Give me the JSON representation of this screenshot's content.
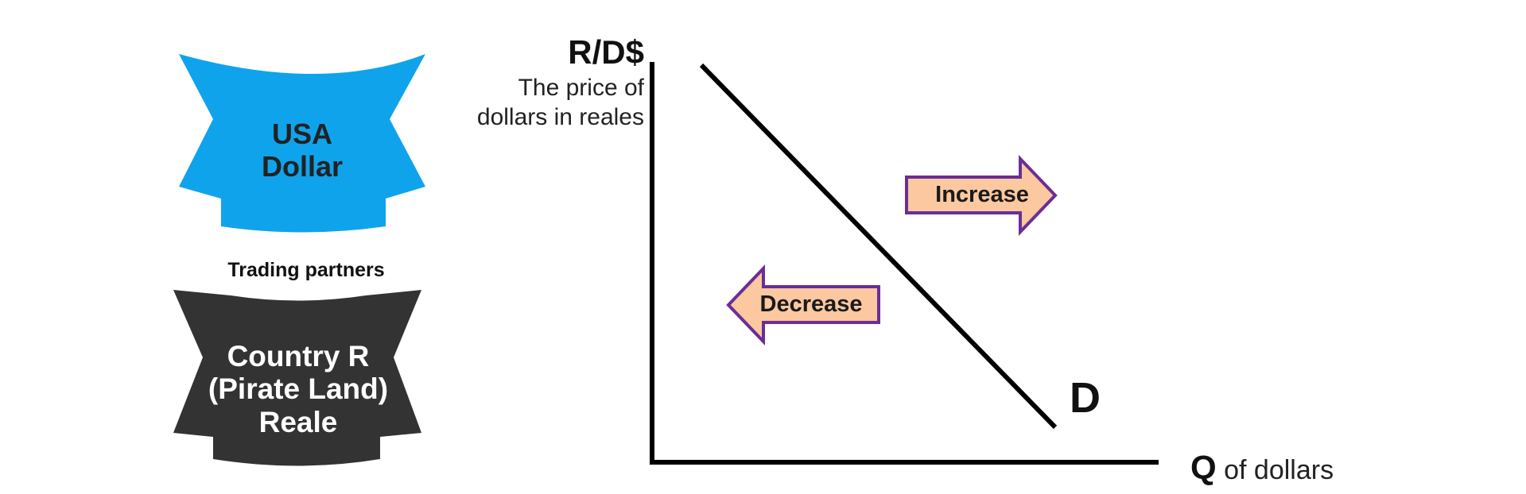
{
  "banners": {
    "usa": {
      "line1": "USA",
      "line2": "Dollar",
      "color": "#0fa3ec"
    },
    "country_r": {
      "line1": "Country R",
      "line2": "(Pirate Land)",
      "line3": "Reale",
      "color": "#333333"
    },
    "link_label": "Trading partners"
  },
  "graph": {
    "y_axis_title": "R/D$",
    "y_axis_desc_line1": "The price of",
    "y_axis_desc_line2": "dollars in reales",
    "x_axis_q": "Q",
    "x_axis_rest": " of dollars",
    "curve_label": "D",
    "arrows": {
      "increase": {
        "label": "Increase",
        "direction": "right",
        "fill": "#fbc8a0",
        "stroke": "#6a2e96"
      },
      "decrease": {
        "label": "Decrease",
        "direction": "left",
        "fill": "#fbc8a0",
        "stroke": "#6a2e96"
      }
    }
  }
}
